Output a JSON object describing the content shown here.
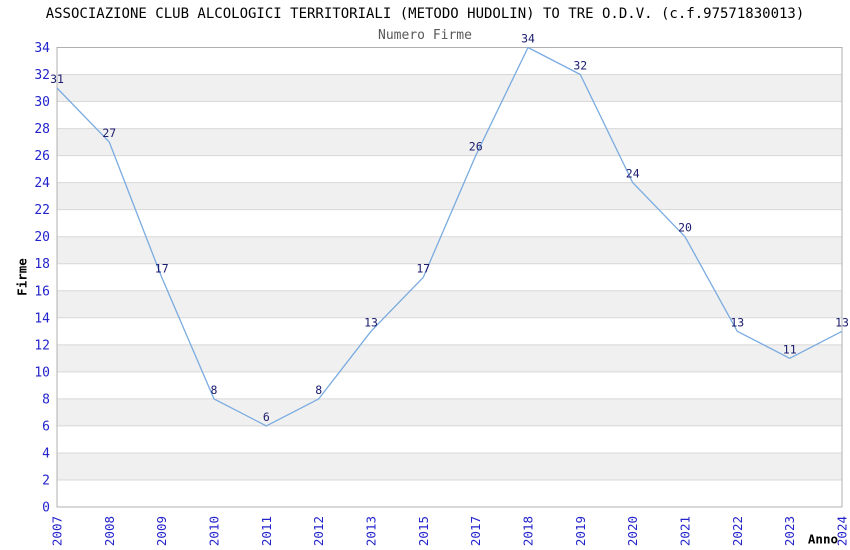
{
  "chart_data": {
    "type": "line",
    "title": "ASSOCIAZIONE CLUB ALCOLOGICI TERRITORIALI (METODO HUDOLIN) TO TRE O.D.V. (c.f.97571830013)",
    "subtitle": "Numero Firme",
    "xlabel": "Anno",
    "ylabel": "Firme",
    "categories": [
      "2007",
      "2008",
      "2009",
      "2010",
      "2011",
      "2012",
      "2013",
      "2015",
      "2017",
      "2018",
      "2019",
      "2020",
      "2021",
      "2022",
      "2023",
      "2024"
    ],
    "values": [
      31,
      27,
      17,
      8,
      6,
      8,
      13,
      17,
      26,
      34,
      32,
      24,
      20,
      13,
      11,
      13
    ],
    "ylim": [
      0,
      34
    ],
    "ytick_step": 2,
    "grid": true,
    "legend_position": "none",
    "band_fill": "zebra-horizontal",
    "colors": {
      "line": "#7aabe0",
      "tick_label": "#2323cc",
      "data_label": "#1b1b6f",
      "band": "#f0f0f0",
      "grid": "#d8d8d8",
      "frame": "#b0b0b0",
      "title": "#000000",
      "subtitle": "#595959"
    }
  }
}
